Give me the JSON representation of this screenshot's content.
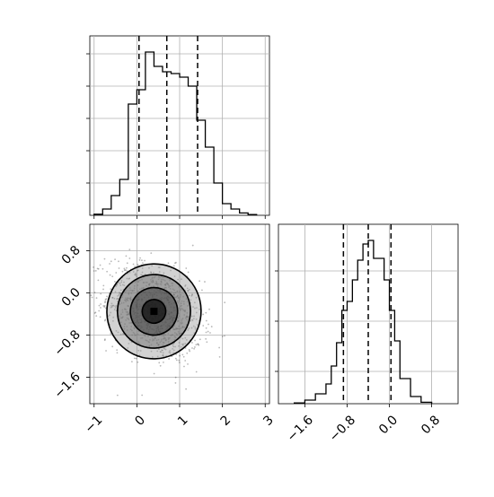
{
  "chart_data": [
    {
      "type": "histogram",
      "panel": "marginal-x",
      "xlim": [
        -1.1,
        3.1
      ],
      "bins": [
        {
          "x0": -1.0,
          "x1": -0.8,
          "h": 0.006
        },
        {
          "x0": -0.8,
          "x1": -0.6,
          "h": 0.035
        },
        {
          "x0": -0.6,
          "x1": -0.4,
          "h": 0.11
        },
        {
          "x0": -0.4,
          "x1": -0.2,
          "h": 0.2
        },
        {
          "x0": -0.2,
          "x1": 0.0,
          "h": 0.62
        },
        {
          "x0": 0.0,
          "x1": 0.2,
          "h": 0.7
        },
        {
          "x0": 0.2,
          "x1": 0.4,
          "h": 0.91
        },
        {
          "x0": 0.4,
          "x1": 0.6,
          "h": 0.83
        },
        {
          "x0": 0.6,
          "x1": 0.8,
          "h": 0.8
        },
        {
          "x0": 0.8,
          "x1": 1.0,
          "h": 0.79
        },
        {
          "x0": 1.0,
          "x1": 1.2,
          "h": 0.77
        },
        {
          "x0": 1.2,
          "x1": 1.4,
          "h": 0.72
        },
        {
          "x0": 1.4,
          "x1": 1.6,
          "h": 0.53
        },
        {
          "x0": 1.6,
          "x1": 1.8,
          "h": 0.38
        },
        {
          "x0": 1.8,
          "x1": 2.0,
          "h": 0.18
        },
        {
          "x0": 2.0,
          "x1": 2.2,
          "h": 0.065
        },
        {
          "x0": 2.2,
          "x1": 2.4,
          "h": 0.035
        },
        {
          "x0": 2.4,
          "x1": 2.6,
          "h": 0.013
        },
        {
          "x0": 2.6,
          "x1": 2.8,
          "h": 0.004
        }
      ],
      "quantiles": [
        0.05,
        0.7,
        1.42
      ]
    },
    {
      "type": "scatter",
      "panel": "joint",
      "xlim": [
        -1.1,
        3.1
      ],
      "ylim": [
        -2.1,
        1.3
      ],
      "x_ticks": [
        "−1",
        "0",
        "1",
        "2",
        "3"
      ],
      "x_tick_values": [
        -1,
        0,
        1,
        2,
        3
      ],
      "y_ticks": [
        "0.8",
        "0.0",
        "−0.8",
        "−1.6"
      ],
      "y_tick_values": [
        0.8,
        0.0,
        -0.8,
        -1.6
      ],
      "center": [
        0.4,
        -0.35
      ],
      "spread": [
        0.55,
        0.45
      ],
      "correlation": -0.3,
      "n_points_drawn": 1200,
      "contour_levels": [
        0.118,
        0.393,
        0.675,
        0.865
      ]
    },
    {
      "type": "histogram",
      "panel": "marginal-y",
      "xlim": [
        -2.1,
        1.3
      ],
      "bins": [
        {
          "x0": -1.8,
          "x1": -1.6,
          "h": 0.004
        },
        {
          "x0": -1.6,
          "x1": -1.4,
          "h": 0.02
        },
        {
          "x0": -1.4,
          "x1": -1.2,
          "h": 0.055
        },
        {
          "x0": -1.2,
          "x1": -1.1,
          "h": 0.11
        },
        {
          "x0": -1.1,
          "x1": -1.0,
          "h": 0.21
        },
        {
          "x0": -1.0,
          "x1": -0.9,
          "h": 0.34
        },
        {
          "x0": -0.9,
          "x1": -0.8,
          "h": 0.52
        },
        {
          "x0": -0.8,
          "x1": -0.7,
          "h": 0.57
        },
        {
          "x0": -0.7,
          "x1": -0.6,
          "h": 0.69
        },
        {
          "x0": -0.6,
          "x1": -0.5,
          "h": 0.8
        },
        {
          "x0": -0.5,
          "x1": -0.4,
          "h": 0.89
        },
        {
          "x0": -0.4,
          "x1": -0.3,
          "h": 0.91
        },
        {
          "x0": -0.3,
          "x1": -0.2,
          "h": 0.81
        },
        {
          "x0": -0.2,
          "x1": -0.1,
          "h": 0.81
        },
        {
          "x0": -0.1,
          "x1": 0.0,
          "h": 0.69
        },
        {
          "x0": 0.0,
          "x1": 0.1,
          "h": 0.52
        },
        {
          "x0": 0.1,
          "x1": 0.2,
          "h": 0.35
        },
        {
          "x0": 0.2,
          "x1": 0.4,
          "h": 0.14
        },
        {
          "x0": 0.4,
          "x1": 0.6,
          "h": 0.04
        },
        {
          "x0": 0.6,
          "x1": 0.8,
          "h": 0.008
        }
      ],
      "quantiles": [
        -0.87,
        -0.4,
        0.03
      ],
      "x_ticks": [
        "−1.6",
        "−0.8",
        "0.0",
        "0.8"
      ],
      "x_tick_values": [
        -1.6,
        -0.8,
        0.0,
        0.8
      ]
    }
  ]
}
